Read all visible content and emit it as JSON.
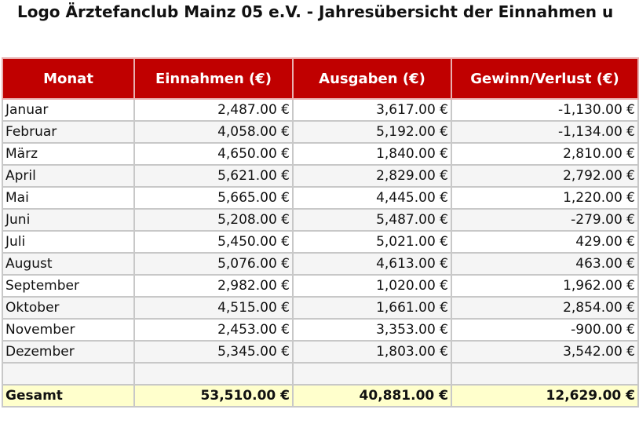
{
  "title": "Logo Ärztefanclub Mainz 05 e.V. - Jahresübersicht der Einnahmen u",
  "colors": {
    "header_bg": "#c00000",
    "total_bg": "#ffffcc"
  },
  "columns": [
    "Monat",
    "Einnahmen (€)",
    "Ausgaben (€)",
    "Gewinn/Verlust (€)"
  ],
  "rows": [
    [
      "Januar",
      "2,487.00 €",
      "3,617.00 €",
      "-1,130.00 €"
    ],
    [
      "Februar",
      "4,058.00 €",
      "5,192.00 €",
      "-1,134.00 €"
    ],
    [
      "März",
      "4,650.00 €",
      "1,840.00 €",
      "2,810.00 €"
    ],
    [
      "April",
      "5,621.00 €",
      "2,829.00 €",
      "2,792.00 €"
    ],
    [
      "Mai",
      "5,665.00 €",
      "4,445.00 €",
      "1,220.00 €"
    ],
    [
      "Juni",
      "5,208.00 €",
      "5,487.00 €",
      "-279.00 €"
    ],
    [
      "Juli",
      "5,450.00 €",
      "5,021.00 €",
      "429.00 €"
    ],
    [
      "August",
      "5,076.00 €",
      "4,613.00 €",
      "463.00 €"
    ],
    [
      "September",
      "2,982.00 €",
      "1,020.00 €",
      "1,962.00 €"
    ],
    [
      "Oktober",
      "4,515.00 €",
      "1,661.00 €",
      "2,854.00 €"
    ],
    [
      "November",
      "2,453.00 €",
      "3,353.00 €",
      "-900.00 €"
    ],
    [
      "Dezember",
      "5,345.00 €",
      "1,803.00 €",
      "3,542.00 €"
    ]
  ],
  "total": [
    "Gesamt",
    "53,510.00 €",
    "40,881.00 €",
    "12,629.00 €"
  ]
}
